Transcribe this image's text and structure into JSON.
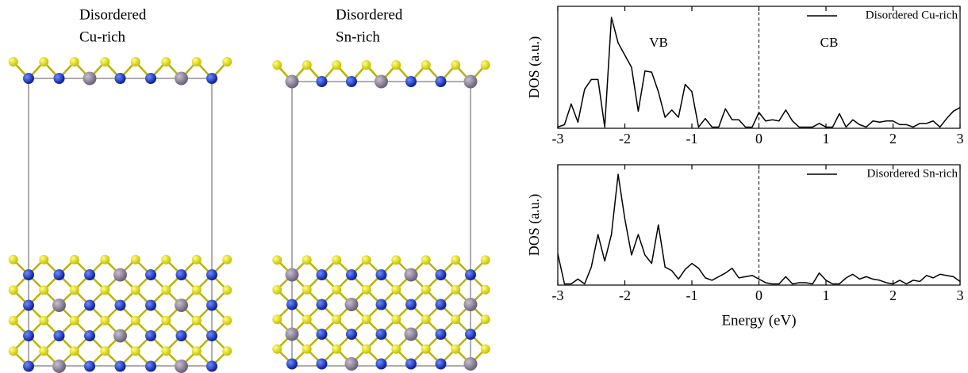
{
  "structures": [
    {
      "title_lines": [
        "Disordered",
        "Cu-rich"
      ]
    },
    {
      "title_lines": [
        "Disordered",
        "Sn-rich"
      ]
    }
  ],
  "chart_data": [
    {
      "type": "line",
      "ylabel": "DOS (a.u.)",
      "annotations": [
        "VB",
        "CB"
      ],
      "reference_x": 0,
      "xlim": [
        -3,
        3
      ],
      "ylim": [
        0,
        1
      ],
      "xticks": [
        -3,
        -2,
        -1,
        0,
        1,
        2,
        3
      ],
      "legend": "upper-right",
      "x": [
        -3.0,
        -2.9,
        -2.8,
        -2.7,
        -2.6,
        -2.5,
        -2.4,
        -2.3,
        -2.2,
        -2.1,
        -2.0,
        -1.9,
        -1.8,
        -1.7,
        -1.6,
        -1.5,
        -1.4,
        -1.3,
        -1.2,
        -1.1,
        -1.0,
        -0.9,
        -0.8,
        -0.7,
        -0.6,
        -0.5,
        -0.4,
        -0.3,
        -0.2,
        -0.1,
        0.0,
        0.1,
        0.2,
        0.3,
        0.4,
        0.5,
        0.6,
        0.7,
        0.8,
        0.9,
        1.0,
        1.1,
        1.2,
        1.3,
        1.4,
        1.5,
        1.6,
        1.7,
        1.8,
        1.9,
        2.0,
        2.1,
        2.2,
        2.3,
        2.4,
        2.5,
        2.6,
        2.7,
        2.8,
        2.9,
        3.0
      ],
      "series": [
        {
          "name": "Disordered Cu-rich",
          "color": "#000000",
          "values": [
            0.01,
            0.03,
            0.2,
            0.05,
            0.32,
            0.4,
            0.4,
            0.01,
            0.91,
            0.7,
            0.6,
            0.5,
            0.14,
            0.47,
            0.46,
            0.3,
            0.09,
            0.15,
            0.09,
            0.36,
            0.3,
            0.01,
            0.08,
            0.01,
            0.01,
            0.16,
            0.07,
            0.07,
            0.01,
            0.01,
            0.13,
            0.06,
            0.07,
            0.06,
            0.15,
            0.06,
            0.01,
            0.01,
            0.01,
            0.04,
            0.01,
            0.01,
            0.12,
            0.01,
            0.07,
            0.03,
            0.01,
            0.06,
            0.05,
            0.06,
            0.06,
            0.03,
            0.03,
            0.01,
            0.04,
            0.04,
            0.06,
            0.01,
            0.08,
            0.14,
            0.17
          ]
        }
      ]
    },
    {
      "type": "line",
      "ylabel": "DOS (a.u.)",
      "xlabel": "Energy (eV)",
      "reference_x": 0,
      "xlim": [
        -3,
        3
      ],
      "ylim": [
        0,
        1
      ],
      "xticks": [
        -3,
        -2,
        -1,
        0,
        1,
        2,
        3
      ],
      "legend": "upper-right",
      "x": [
        -3.0,
        -2.9,
        -2.8,
        -2.7,
        -2.6,
        -2.5,
        -2.4,
        -2.3,
        -2.2,
        -2.1,
        -2.0,
        -1.9,
        -1.8,
        -1.7,
        -1.6,
        -1.5,
        -1.4,
        -1.3,
        -1.2,
        -1.1,
        -1.0,
        -0.9,
        -0.8,
        -0.7,
        -0.6,
        -0.5,
        -0.4,
        -0.3,
        -0.2,
        -0.1,
        0.0,
        0.1,
        0.2,
        0.3,
        0.4,
        0.5,
        0.6,
        0.7,
        0.8,
        0.9,
        1.0,
        1.1,
        1.2,
        1.3,
        1.4,
        1.5,
        1.6,
        1.7,
        1.8,
        1.9,
        2.0,
        2.1,
        2.2,
        2.3,
        2.4,
        2.5,
        2.6,
        2.7,
        2.8,
        2.9,
        3.0
      ],
      "series": [
        {
          "name": "Disordered Sn-rich",
          "color": "#000000",
          "values": [
            0.26,
            0.01,
            0.01,
            0.05,
            0.01,
            0.15,
            0.42,
            0.2,
            0.42,
            0.92,
            0.55,
            0.25,
            0.42,
            0.25,
            0.18,
            0.5,
            0.15,
            0.12,
            0.05,
            0.13,
            0.18,
            0.14,
            0.06,
            0.04,
            0.07,
            0.1,
            0.14,
            0.06,
            0.07,
            0.08,
            0.05,
            0.02,
            0.01,
            0.01,
            0.07,
            0.01,
            0.02,
            0.02,
            0.01,
            0.1,
            0.04,
            0.01,
            0.01,
            0.06,
            0.09,
            0.05,
            0.07,
            0.05,
            0.04,
            0.02,
            0.01,
            0.04,
            0.01,
            0.04,
            0.03,
            0.08,
            0.06,
            0.09,
            0.08,
            0.07,
            0.03
          ]
        }
      ]
    }
  ]
}
